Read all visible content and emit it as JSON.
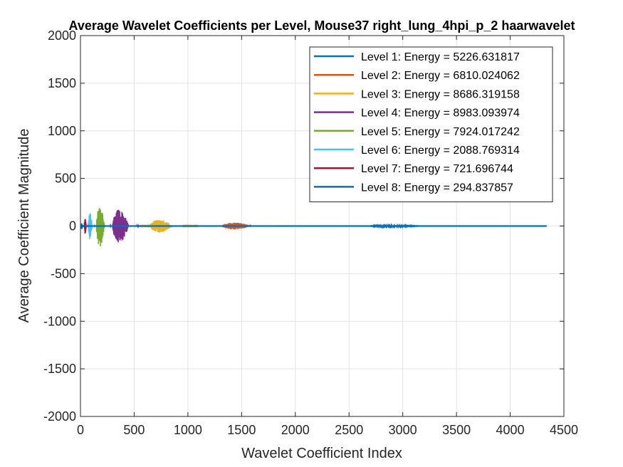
{
  "chart_data": {
    "type": "line",
    "title": "Average Wavelet Coefficients per Level, Mouse37 right_lung_4hpi_p_2 haarwavelet",
    "xlabel": "Wavelet Coefficient Index",
    "ylabel": "Average Coefficient Magnitude",
    "xlim": [
      0,
      4500
    ],
    "ylim": [
      -2000,
      2000
    ],
    "xticks": [
      0,
      500,
      1000,
      1500,
      2000,
      2500,
      3000,
      3500,
      4000,
      4500
    ],
    "yticks": [
      -2000,
      -1500,
      -1000,
      -500,
      0,
      500,
      1000,
      1500,
      2000
    ],
    "grid": true,
    "legend_position": "top-right",
    "series": [
      {
        "name": "Level 1: Energy = 5226.631817",
        "color": "#0072BD",
        "range": [
          2180,
          4340
        ],
        "burst": [
          2700,
          3400
        ],
        "amp": 12
      },
      {
        "name": "Level 2: Energy = 6810.024062",
        "color": "#D95319",
        "range": [
          1090,
          2180
        ],
        "burst": [
          1320,
          1720
        ],
        "amp": 45
      },
      {
        "name": "Level 3: Energy = 8686.319158",
        "color": "#EDB120",
        "range": [
          545,
          1090
        ],
        "burst": [
          650,
          950
        ],
        "amp": 85
      },
      {
        "name": "Level 4: Energy = 8983.093974",
        "color": "#7E2F8E",
        "range": [
          272,
          545
        ],
        "burst": [
          300,
          520
        ],
        "amp": 215
      },
      {
        "name": "Level 5: Energy = 7924.017242",
        "color": "#77AC30",
        "range": [
          136,
          272
        ],
        "burst": [
          150,
          260
        ],
        "amp": 270
      },
      {
        "name": "Level 6: Energy = 2088.769314",
        "color": "#4DBEEE",
        "range": [
          68,
          136
        ],
        "burst": [
          75,
          125
        ],
        "amp": 180
      },
      {
        "name": "Level 7: Energy = 721.696744",
        "color": "#A2142F",
        "range": [
          34,
          68
        ],
        "burst": [
          36,
          64
        ],
        "amp": 110
      },
      {
        "name": "Level 8: Energy = 294.837857",
        "color": "#0072BD",
        "range": [
          0,
          34
        ],
        "burst": [
          5,
          30
        ],
        "amp": 45
      }
    ]
  }
}
